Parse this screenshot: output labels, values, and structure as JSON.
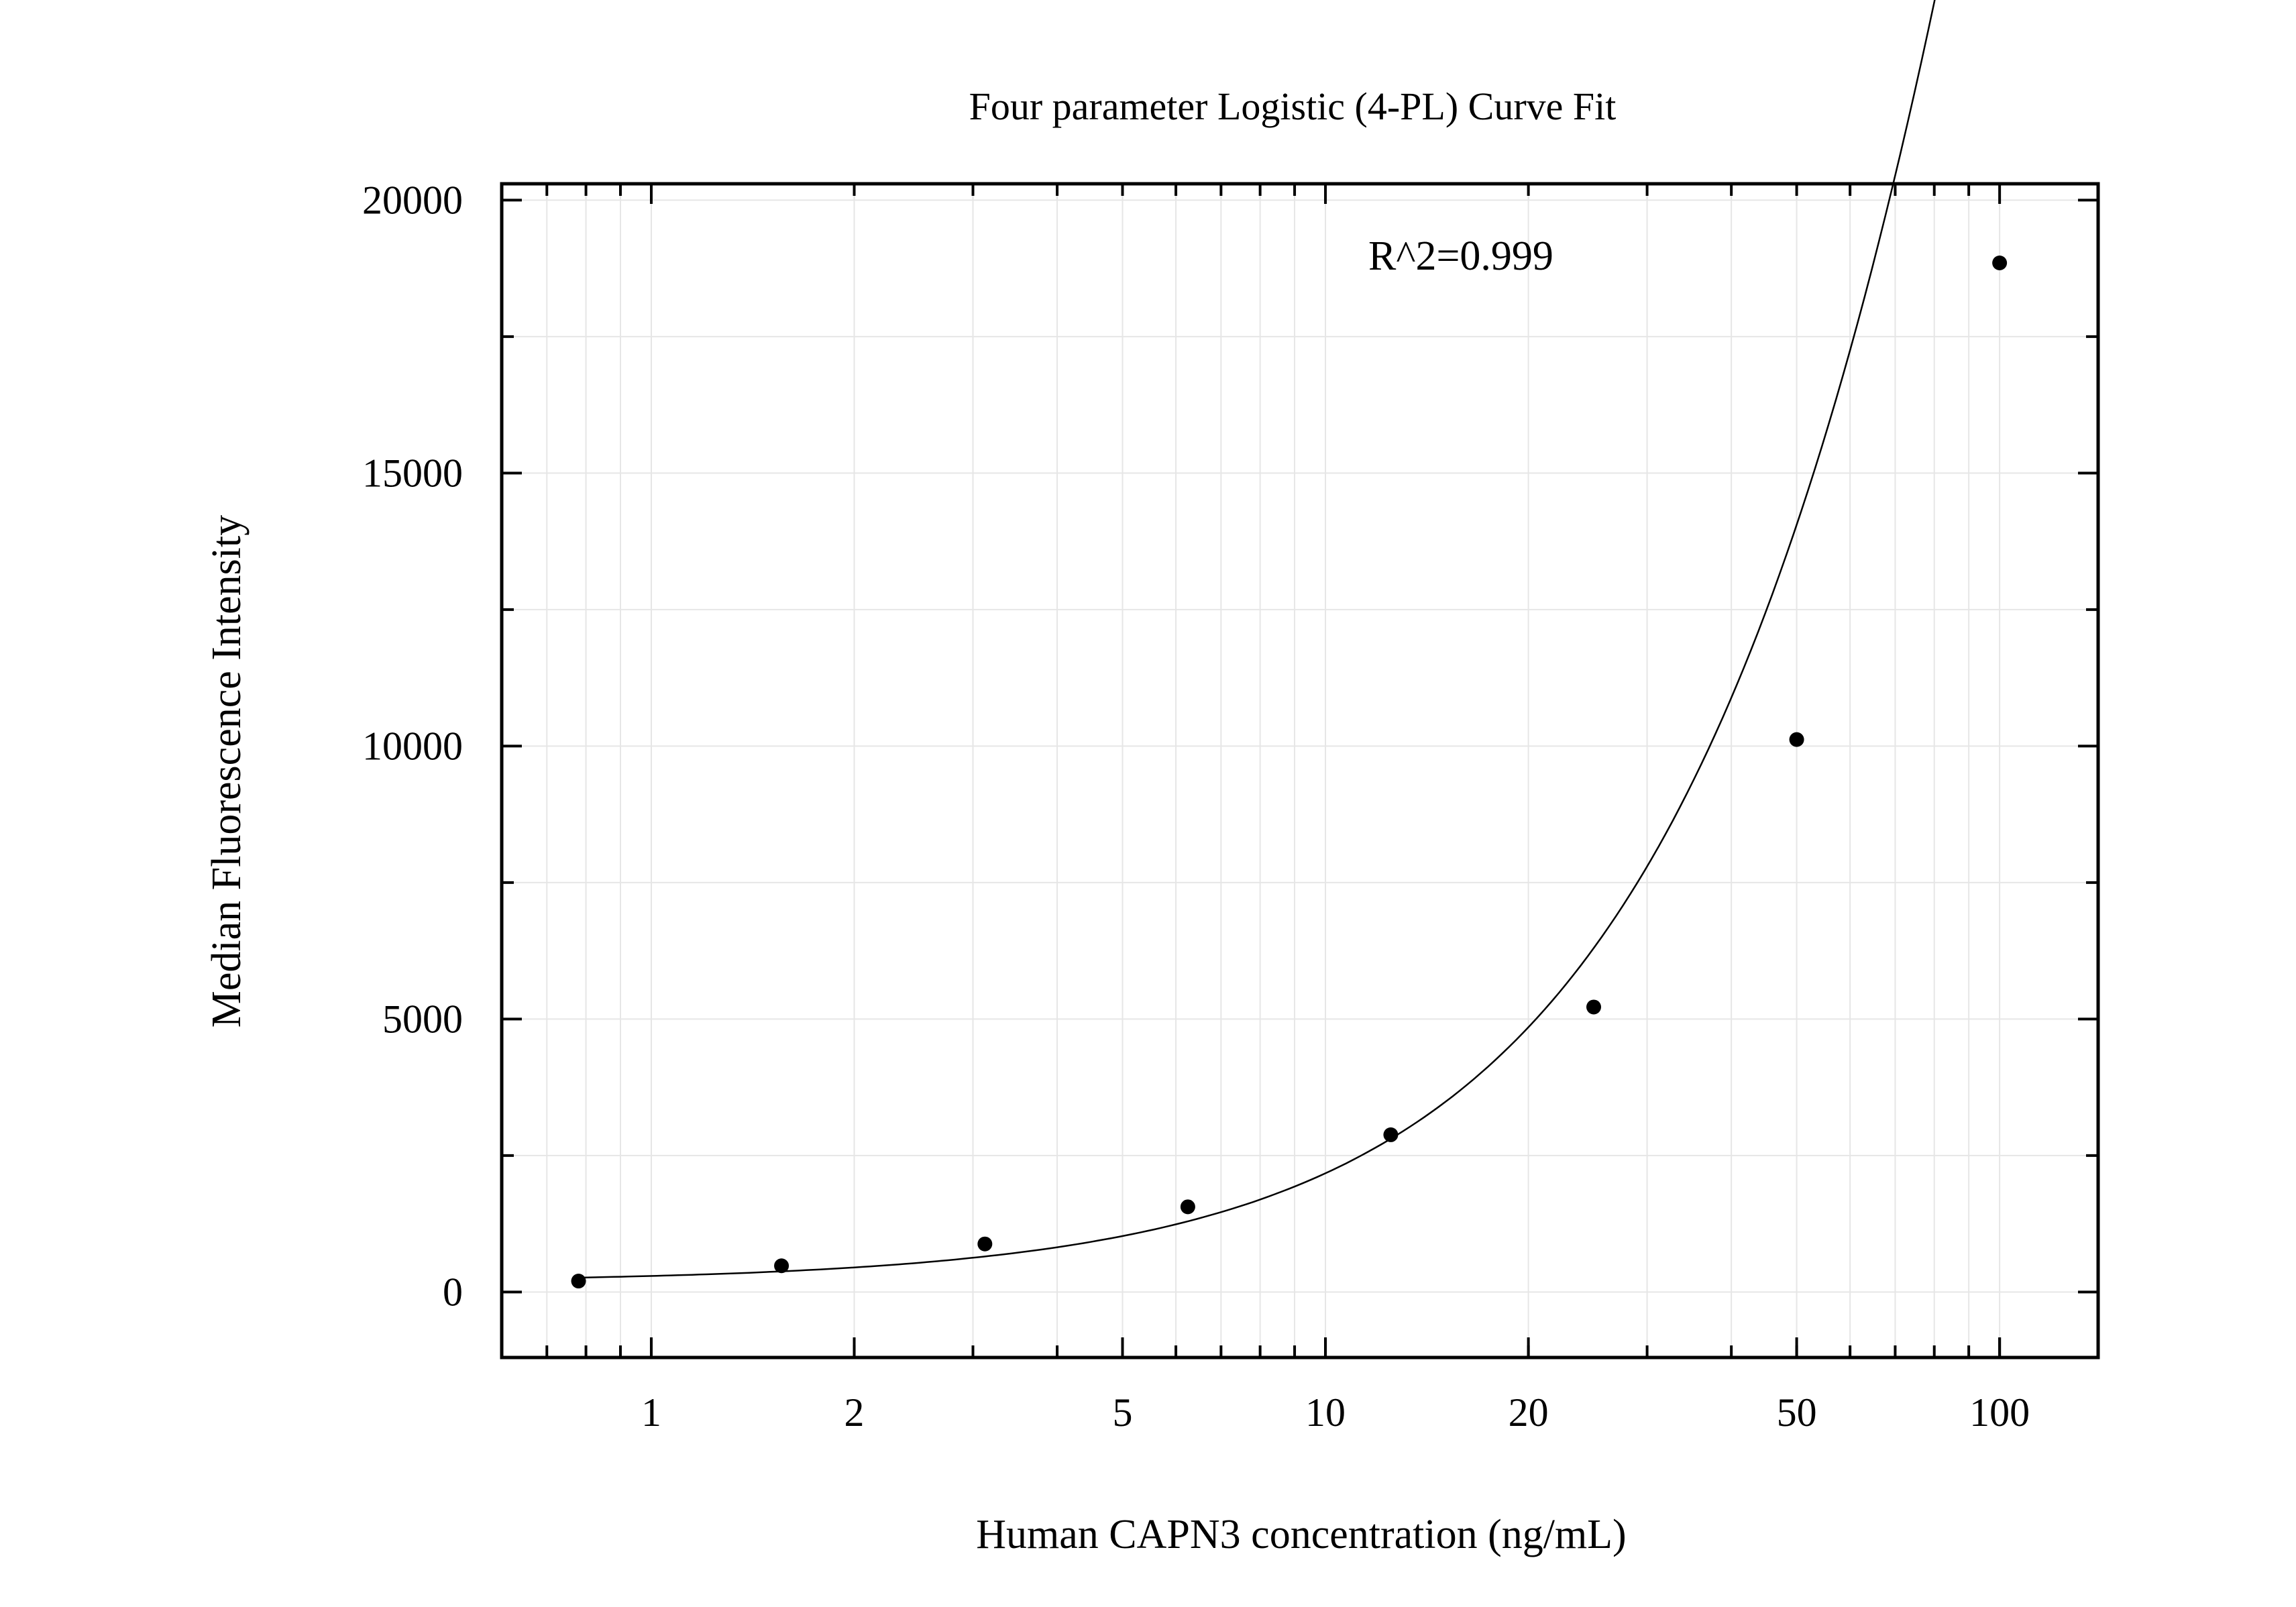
{
  "chart_data": {
    "type": "scatter",
    "title": "Four parameter Logistic (4-PL) Curve Fit",
    "xlabel": "Human CAPN3 concentration (ng/mL)",
    "ylabel": "Median Fluorescence Intensity",
    "x_scale": "log",
    "xlim": [
      0.6,
      140
    ],
    "ylim": [
      -1200,
      20300
    ],
    "x_ticks": [
      1,
      2,
      5,
      10,
      20,
      50,
      100
    ],
    "x_tick_labels": [
      "1",
      "2",
      "5",
      "10",
      "20",
      "50",
      "100"
    ],
    "y_ticks": [
      0,
      5000,
      10000,
      15000,
      20000
    ],
    "y_tick_labels": [
      "0",
      "5000",
      "10000",
      "15000",
      "20000"
    ],
    "grid": true,
    "annotation": "R^2=0.999",
    "series": [
      {
        "type": "scatter",
        "x": [
          0.78,
          1.56,
          3.125,
          6.25,
          12.5,
          25,
          50,
          100
        ],
        "y": [
          200,
          480,
          880,
          1560,
          2880,
          5220,
          10120,
          18850
        ]
      },
      {
        "type": "line",
        "fit": "4PL",
        "params": {
          "A": 180,
          "B": 1.25,
          "C": 350,
          "D": 172000
        }
      }
    ],
    "colors": {
      "marker": "#000000",
      "line": "#000000",
      "grid": "#e6e6e6",
      "axis": "#000000"
    }
  }
}
